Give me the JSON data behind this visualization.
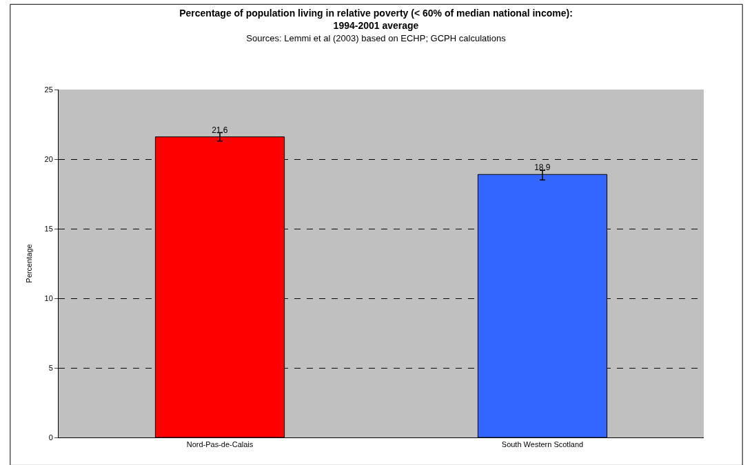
{
  "chart_data": {
    "type": "bar",
    "title": "Percentage of population living in relative poverty (< 60% of median national income):\n1994-2001 average",
    "subtitle": "Sources: Lemmi et al (2003) based on ECHP; GCPH calculations",
    "ylabel": "Percentage",
    "categories": [
      "Nord-Pas-de-Calais",
      "South Western Scotland"
    ],
    "values": [
      21.6,
      18.9
    ],
    "colors": [
      "#ff0000",
      "#3366ff"
    ],
    "errors": [
      [
        21.3,
        21.9
      ],
      [
        18.5,
        19.2
      ]
    ],
    "ylim": [
      0,
      25
    ],
    "yticks": [
      0,
      5,
      10,
      15,
      20,
      25
    ],
    "grid": "y",
    "data_labels": true,
    "legend": false
  }
}
